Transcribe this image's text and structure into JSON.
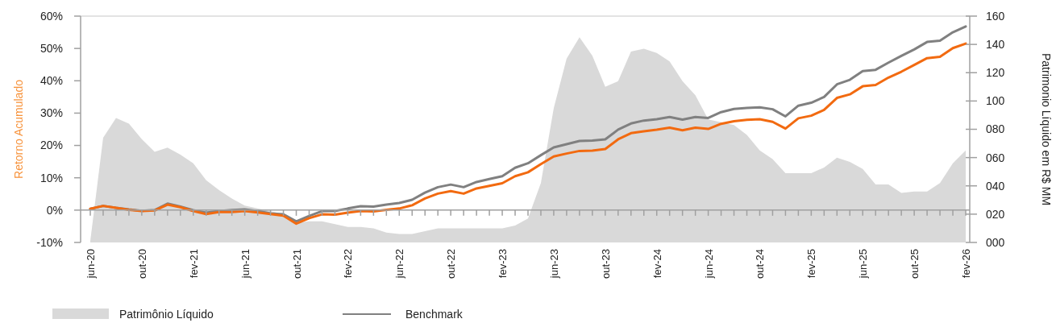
{
  "chart_data": {
    "type": "line",
    "categories": [
      "jun-20",
      null,
      null,
      null,
      "out-20",
      null,
      null,
      null,
      "fev-21",
      null,
      null,
      null,
      "jun-21",
      null,
      null,
      null,
      "out-21",
      null,
      null,
      null,
      "fev-22",
      null,
      null,
      null,
      "jun-22",
      null,
      null,
      null,
      "out-22",
      null,
      null,
      null,
      "fev-23",
      null,
      null,
      null,
      "jun-23",
      null,
      null,
      null,
      "out-23",
      null,
      null,
      null,
      "fev-24",
      null,
      null,
      null,
      "jun-24",
      null,
      null,
      null,
      "out-24",
      null,
      null,
      null,
      "fev-25",
      null,
      null,
      null,
      "jun-25",
      null,
      null,
      null,
      "out-25",
      null,
      null,
      null,
      "fev-26"
    ],
    "ylabel": "Retorno Acumulado",
    "y2label": "Patrimonio Líquido em R$ MM",
    "ylim": [
      -10,
      60
    ],
    "yticks": [
      {
        "value": -10,
        "label": "-10%"
      },
      {
        "value": 0,
        "label": "0%"
      },
      {
        "value": 10,
        "label": "10%"
      },
      {
        "value": 20,
        "label": "20%"
      },
      {
        "value": 30,
        "label": "30%"
      },
      {
        "value": 40,
        "label": "40%"
      },
      {
        "value": 50,
        "label": "50%"
      },
      {
        "value": 60,
        "label": "60%"
      }
    ],
    "y2lim": [
      0,
      160
    ],
    "y2ticks": [
      {
        "value": 0,
        "label": "000"
      },
      {
        "value": 20,
        "label": "020"
      },
      {
        "value": 40,
        "label": "040"
      },
      {
        "value": 60,
        "label": "060"
      },
      {
        "value": 80,
        "label": "080"
      },
      {
        "value": 100,
        "label": "100"
      },
      {
        "value": 120,
        "label": "120"
      },
      {
        "value": 140,
        "label": "140"
      },
      {
        "value": 160,
        "label": "160"
      }
    ],
    "legend": "bottom",
    "series": [
      {
        "name": "Patrimônio Líquido",
        "type": "area",
        "axis": "y2",
        "color": "#d9d9d9",
        "values": [
          1,
          74,
          88,
          84,
          73,
          64,
          67,
          62,
          56,
          44,
          37,
          31,
          26,
          24,
          22,
          20,
          14,
          15,
          15,
          13,
          11,
          11,
          10,
          7,
          6,
          6,
          8,
          10,
          10,
          10,
          10,
          10,
          10,
          12,
          17,
          42,
          95,
          130,
          145,
          132,
          110,
          114,
          135,
          137,
          134,
          128,
          114,
          104,
          87,
          85,
          83,
          76,
          65,
          59,
          49,
          49,
          49,
          53,
          60,
          57,
          52,
          41,
          41,
          35,
          36,
          36,
          42,
          56,
          65
        ]
      },
      {
        "name": "Benchmark",
        "color": "#808080",
        "values": [
          0.4,
          1.3,
          0.7,
          0.2,
          -0.2,
          0.0,
          2.0,
          1.1,
          0.0,
          -0.8,
          -0.3,
          0.0,
          0.2,
          -0.3,
          -1.0,
          -1.3,
          -3.5,
          -1.8,
          -0.3,
          -0.3,
          0.5,
          1.2,
          1.1,
          1.7,
          2.2,
          3.2,
          5.4,
          7.1,
          7.9,
          7.1,
          8.7,
          9.6,
          10.5,
          13.1,
          14.5,
          17.0,
          19.4,
          20.4,
          21.4,
          21.5,
          21.9,
          24.9,
          26.8,
          27.7,
          28.1,
          28.8,
          28.0,
          28.8,
          28.5,
          30.3,
          31.3,
          31.6,
          31.8,
          31.2,
          29.0,
          32.3,
          33.2,
          35.0,
          38.9,
          40.3,
          43.0,
          43.4,
          45.6,
          47.7,
          49.7,
          52.0,
          52.4,
          55.0,
          56.8
        ]
      },
      {
        "color": "#f26a10",
        "values": [
          0.4,
          1.3,
          0.7,
          0.1,
          -0.3,
          -0.1,
          1.7,
          0.9,
          -0.3,
          -1.2,
          -0.6,
          -0.6,
          -0.3,
          -0.7,
          -1.2,
          -1.7,
          -4.2,
          -2.5,
          -1.3,
          -1.4,
          -0.8,
          -0.3,
          -0.4,
          0.1,
          0.5,
          1.5,
          3.6,
          5.1,
          5.9,
          5.1,
          6.7,
          7.5,
          8.3,
          10.5,
          11.7,
          14.2,
          16.6,
          17.5,
          18.3,
          18.4,
          18.9,
          21.9,
          23.8,
          24.4,
          24.9,
          25.5,
          24.7,
          25.5,
          25.1,
          26.7,
          27.5,
          27.9,
          28.1,
          27.3,
          25.2,
          28.4,
          29.2,
          31.0,
          34.7,
          35.8,
          38.3,
          38.7,
          41.0,
          42.8,
          44.9,
          47.0,
          47.4,
          50.1,
          51.5
        ]
      }
    ]
  }
}
